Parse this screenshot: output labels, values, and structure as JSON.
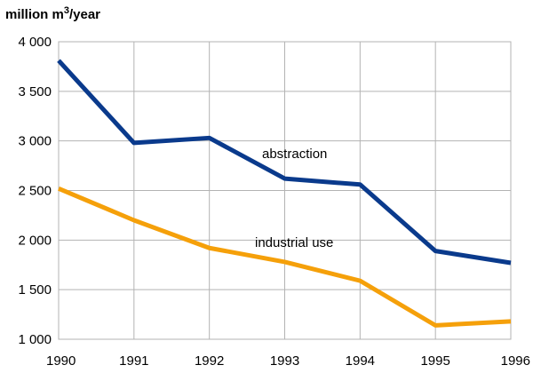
{
  "chart_data": {
    "type": "line",
    "ylabel": "million m",
    "ylabel_sup": "3",
    "ylabel_suffix": "/year",
    "x": [
      1990,
      1991,
      1992,
      1993,
      1994,
      1995,
      1996
    ],
    "x_tick_labels": [
      "1990",
      "1991",
      "1992",
      "1993",
      "1994",
      "1995",
      "1996"
    ],
    "ylim": [
      1000,
      4000
    ],
    "y_ticks": [
      1000,
      1500,
      2000,
      2500,
      3000,
      3500,
      4000
    ],
    "y_tick_labels": [
      "1 000",
      "1 500",
      "2 000",
      "2 500",
      "3 000",
      "3 500",
      "4 000"
    ],
    "grid": true,
    "series": [
      {
        "name": "abstraction",
        "color": "#0a3a8c",
        "values": [
          3810,
          2980,
          3030,
          2620,
          2560,
          1890,
          1770
        ]
      },
      {
        "name": "industrial use",
        "color": "#f5a00a",
        "values": [
          2520,
          2200,
          1920,
          1780,
          1590,
          1140,
          1180
        ]
      }
    ]
  }
}
